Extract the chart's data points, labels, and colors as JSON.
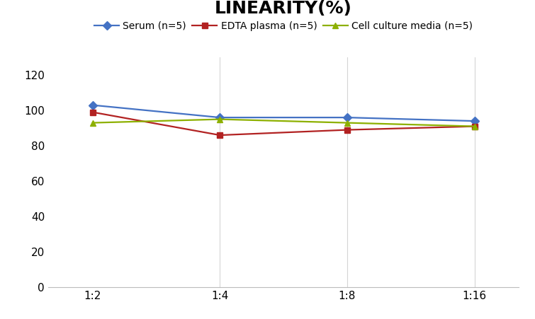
{
  "title": "LINEARITY(%)",
  "x_labels": [
    "1:2",
    "1:4",
    "1:8",
    "1:16"
  ],
  "series": [
    {
      "label": "Serum (n=5)",
      "color": "#4472C4",
      "marker": "D",
      "markersize": 6,
      "values": [
        103,
        96,
        96,
        94
      ]
    },
    {
      "label": "EDTA plasma (n=5)",
      "color": "#B22222",
      "marker": "s",
      "markersize": 6,
      "values": [
        99,
        86,
        89,
        91
      ]
    },
    {
      "label": "Cell culture media (n=5)",
      "color": "#8DB000",
      "marker": "^",
      "markersize": 6,
      "values": [
        93,
        95,
        93,
        91
      ]
    }
  ],
  "ylim": [
    0,
    130
  ],
  "yticks": [
    0,
    20,
    40,
    60,
    80,
    100,
    120
  ],
  "background_color": "#ffffff",
  "grid_color": "#d5d5d5",
  "title_fontsize": 18,
  "legend_fontsize": 10,
  "tick_fontsize": 11
}
